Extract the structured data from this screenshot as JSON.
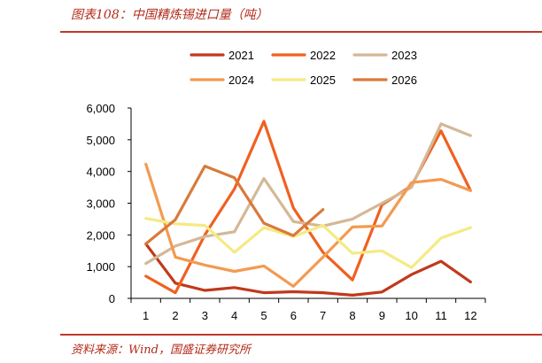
{
  "title": "图表108：中国精炼锡进口量（吨）",
  "source": "资料来源：Wind，国盛证券研究所",
  "chart_data": {
    "type": "line",
    "x": [
      1,
      2,
      3,
      4,
      5,
      6,
      7,
      8,
      9,
      10,
      11,
      12
    ],
    "xticks": [
      "1",
      "2",
      "3",
      "4",
      "5",
      "6",
      "7",
      "8",
      "9",
      "10",
      "11",
      "12"
    ],
    "ylim": [
      0,
      6000
    ],
    "yticks": [
      "0",
      "1,000",
      "2,000",
      "3,000",
      "4,000",
      "5,000",
      "6,000"
    ],
    "ytick_values": [
      0,
      1000,
      2000,
      3000,
      4000,
      5000,
      6000
    ],
    "legend_position": "top",
    "series": [
      {
        "name": "2021",
        "color": "#c0391b",
        "values": [
          1720,
          480,
          250,
          340,
          180,
          210,
          180,
          100,
          200,
          750,
          1170,
          520
        ]
      },
      {
        "name": "2022",
        "color": "#f06020",
        "values": [
          700,
          180,
          2000,
          3450,
          5580,
          2850,
          1450,
          580,
          2950,
          3550,
          5280,
          3400
        ]
      },
      {
        "name": "2023",
        "color": "#d4b896",
        "values": [
          1100,
          1650,
          1950,
          2100,
          3780,
          2420,
          2280,
          2500,
          3000,
          3500,
          5500,
          5130
        ]
      },
      {
        "name": "2024",
        "color": "#f39a50",
        "values": [
          4230,
          1300,
          1050,
          850,
          1020,
          380,
          1300,
          2250,
          2280,
          3650,
          3750,
          3400
        ]
      },
      {
        "name": "2025",
        "color": "#f5ea84",
        "values": [
          2520,
          2350,
          2300,
          1450,
          2230,
          1950,
          2300,
          1420,
          1500,
          970,
          1900,
          2230
        ]
      },
      {
        "name": "2026",
        "color": "#d97a3a",
        "values": [
          1720,
          2480,
          4170,
          3800,
          2370,
          1980,
          2800,
          null,
          null,
          null,
          null,
          null
        ]
      }
    ]
  }
}
